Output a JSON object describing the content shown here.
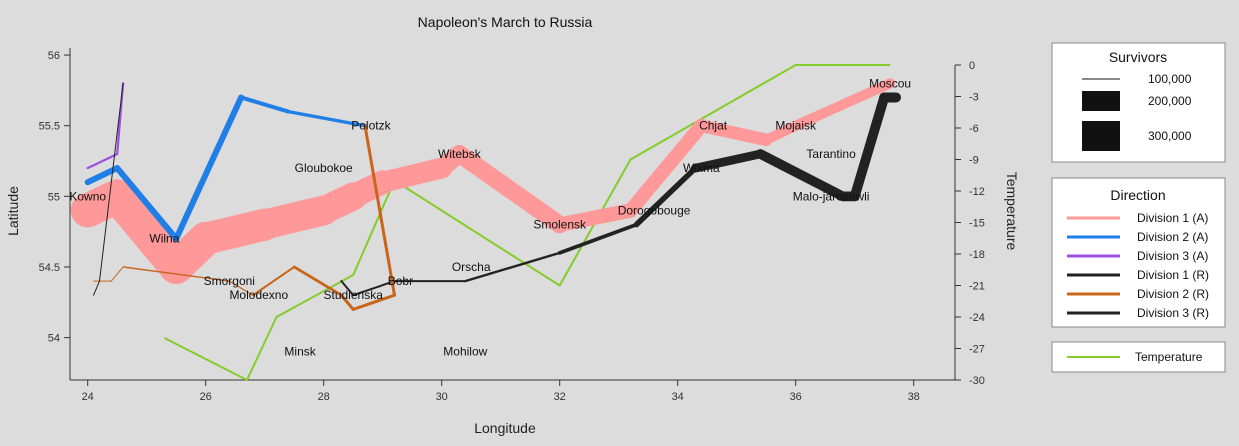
{
  "chart_data": {
    "type": "line",
    "title": "Napoleon's March to Russia",
    "xlabel": "Longitude",
    "ylabel": "Latitude",
    "y2label": "Temperature",
    "xlim": [
      23.7,
      38.7
    ],
    "ylim": [
      53.7,
      56.05
    ],
    "y2lim": [
      -30,
      0
    ],
    "x_ticks": [
      24,
      26,
      28,
      30,
      32,
      34,
      36,
      38
    ],
    "y_ticks": [
      54,
      54.5,
      55,
      55.5,
      56
    ],
    "y2_ticks": [
      0,
      -3,
      -6,
      -9,
      -12,
      -15,
      -18,
      -21,
      -24,
      -27,
      -30
    ],
    "grid": false,
    "series": [
      {
        "name": "Division 1 (A)",
        "color": "#ff9999",
        "direction": "A",
        "division": 1,
        "points": [
          {
            "lon": 24.0,
            "lat": 54.9,
            "surv": 340000
          },
          {
            "lon": 24.5,
            "lat": 55.0,
            "surv": 340000
          },
          {
            "lon": 25.5,
            "lat": 54.5,
            "surv": 340000
          },
          {
            "lon": 26.0,
            "lat": 54.7,
            "surv": 320000
          },
          {
            "lon": 27.0,
            "lat": 54.8,
            "surv": 300000
          },
          {
            "lon": 28.0,
            "lat": 54.9,
            "surv": 280000
          },
          {
            "lon": 28.5,
            "lat": 55.0,
            "surv": 240000
          },
          {
            "lon": 29.0,
            "lat": 55.1,
            "surv": 210000
          },
          {
            "lon": 30.0,
            "lat": 55.2,
            "surv": 180000
          },
          {
            "lon": 30.3,
            "lat": 55.3,
            "surv": 175000
          },
          {
            "lon": 32.0,
            "lat": 54.8,
            "surv": 145000
          },
          {
            "lon": 33.2,
            "lat": 54.9,
            "surv": 140000
          },
          {
            "lon": 34.4,
            "lat": 55.5,
            "surv": 127100
          },
          {
            "lon": 35.5,
            "lat": 55.4,
            "surv": 100000
          },
          {
            "lon": 36.0,
            "lat": 55.5,
            "surv": 100000
          },
          {
            "lon": 37.6,
            "lat": 55.8,
            "surv": 100000
          }
        ]
      },
      {
        "name": "Division 2 (A)",
        "color": "#1f7fe6",
        "direction": "A",
        "division": 2,
        "points": [
          {
            "lon": 24.0,
            "lat": 55.1,
            "surv": 60000
          },
          {
            "lon": 24.5,
            "lat": 55.2,
            "surv": 60000
          },
          {
            "lon": 25.5,
            "lat": 54.7,
            "surv": 60000
          },
          {
            "lon": 26.6,
            "lat": 55.7,
            "surv": 40000
          },
          {
            "lon": 27.4,
            "lat": 55.6,
            "surv": 33000
          },
          {
            "lon": 28.7,
            "lat": 55.5,
            "surv": 33000
          }
        ]
      },
      {
        "name": "Division 3 (A)",
        "color": "#9b4fe0",
        "direction": "A",
        "division": 3,
        "points": [
          {
            "lon": 24.0,
            "lat": 55.2,
            "surv": 22000
          },
          {
            "lon": 24.5,
            "lat": 55.3,
            "surv": 22000
          },
          {
            "lon": 24.6,
            "lat": 55.8,
            "surv": 6000
          }
        ]
      },
      {
        "name": "Division 1 (R)",
        "color": "#222222",
        "direction": "R",
        "division": 1,
        "points": [
          {
            "lon": 37.7,
            "lat": 55.7,
            "surv": 100000
          },
          {
            "lon": 37.5,
            "lat": 55.7,
            "surv": 98000
          },
          {
            "lon": 37.0,
            "lat": 55.0,
            "surv": 97000
          },
          {
            "lon": 36.8,
            "lat": 55.0,
            "surv": 96000
          },
          {
            "lon": 35.4,
            "lat": 55.3,
            "surv": 87000
          },
          {
            "lon": 34.3,
            "lat": 55.2,
            "surv": 55000
          },
          {
            "lon": 33.3,
            "lat": 54.8,
            "surv": 37000
          },
          {
            "lon": 32.0,
            "lat": 54.6,
            "surv": 24000
          },
          {
            "lon": 30.4,
            "lat": 54.4,
            "surv": 20000
          },
          {
            "lon": 29.2,
            "lat": 54.4,
            "surv": 20000
          },
          {
            "lon": 28.5,
            "lat": 54.3,
            "surv": 20000
          },
          {
            "lon": 28.3,
            "lat": 54.4,
            "surv": 20000
          }
        ]
      },
      {
        "name": "Division 2 (R)",
        "color": "#c8651b",
        "direction": "R",
        "division": 2,
        "points": [
          {
            "lon": 28.7,
            "lat": 55.5,
            "surv": 30000
          },
          {
            "lon": 29.2,
            "lat": 54.3,
            "surv": 30000
          },
          {
            "lon": 28.5,
            "lat": 54.2,
            "surv": 30000
          },
          {
            "lon": 28.3,
            "lat": 54.3,
            "surv": 28000
          },
          {
            "lon": 27.5,
            "lat": 54.5,
            "surv": 20000
          },
          {
            "lon": 26.8,
            "lat": 54.3,
            "surv": 12000
          },
          {
            "lon": 26.4,
            "lat": 54.4,
            "surv": 14000
          },
          {
            "lon": 24.6,
            "lat": 54.5,
            "surv": 8000
          },
          {
            "lon": 24.4,
            "lat": 54.4,
            "surv": 4000
          },
          {
            "lon": 24.2,
            "lat": 54.4,
            "surv": 4000
          },
          {
            "lon": 24.1,
            "lat": 54.4,
            "surv": 4000
          }
        ]
      },
      {
        "name": "Division 3 (R)",
        "color": "#222222",
        "direction": "R",
        "division": 3,
        "points": [
          {
            "lon": 24.6,
            "lat": 55.8,
            "surv": 6000
          },
          {
            "lon": 24.2,
            "lat": 54.4,
            "surv": 6000
          },
          {
            "lon": 24.1,
            "lat": 54.3,
            "surv": 6000
          }
        ]
      }
    ],
    "temperature": {
      "name": "Temperature",
      "color": "#84cc2a",
      "points": [
        {
          "lon": 37.6,
          "temp": 0
        },
        {
          "lon": 36.0,
          "temp": 0
        },
        {
          "lon": 33.2,
          "temp": -9
        },
        {
          "lon": 32.0,
          "temp": -21
        },
        {
          "lon": 29.2,
          "temp": -11
        },
        {
          "lon": 28.5,
          "temp": -20
        },
        {
          "lon": 27.2,
          "temp": -24
        },
        {
          "lon": 26.7,
          "temp": -30
        },
        {
          "lon": 25.3,
          "temp": -26
        }
      ]
    },
    "cities": [
      {
        "name": "Kowno",
        "lon": 24.0,
        "lat": 55.0
      },
      {
        "name": "Wilna",
        "lon": 25.3,
        "lat": 54.7
      },
      {
        "name": "Smorgoni",
        "lon": 26.4,
        "lat": 54.4
      },
      {
        "name": "Molodexno",
        "lon": 26.9,
        "lat": 54.3
      },
      {
        "name": "Gloubokoe",
        "lon": 28.0,
        "lat": 55.2
      },
      {
        "name": "Minsk",
        "lon": 27.6,
        "lat": 53.9
      },
      {
        "name": "Studienska",
        "lon": 28.5,
        "lat": 54.3
      },
      {
        "name": "Polotzk",
        "lon": 28.8,
        "lat": 55.5
      },
      {
        "name": "Bobr",
        "lon": 29.3,
        "lat": 54.4
      },
      {
        "name": "Witebsk",
        "lon": 30.3,
        "lat": 55.3
      },
      {
        "name": "Orscha",
        "lon": 30.5,
        "lat": 54.5
      },
      {
        "name": "Mohilow",
        "lon": 30.4,
        "lat": 53.9
      },
      {
        "name": "Smolensk",
        "lon": 32.0,
        "lat": 54.8
      },
      {
        "name": "Dorogobouge",
        "lon": 33.6,
        "lat": 54.9
      },
      {
        "name": "Wixma",
        "lon": 34.4,
        "lat": 55.2
      },
      {
        "name": "Chjat",
        "lon": 34.6,
        "lat": 55.5
      },
      {
        "name": "Mojaisk",
        "lon": 36.0,
        "lat": 55.5
      },
      {
        "name": "Tarantino",
        "lon": 36.6,
        "lat": 55.3
      },
      {
        "name": "Malo-jarosewli",
        "lon": 36.6,
        "lat": 55.0
      },
      {
        "name": "Moscou",
        "lon": 37.6,
        "lat": 55.8
      }
    ],
    "legend": {
      "survivors_title": "Survivors",
      "survivors": [
        {
          "label": "100,000",
          "value": 100000
        },
        {
          "label": "200,000",
          "value": 200000
        },
        {
          "label": "300,000",
          "value": 300000
        }
      ],
      "direction_title": "Direction",
      "temperature_label": "Temperature",
      "placement": "right"
    }
  }
}
